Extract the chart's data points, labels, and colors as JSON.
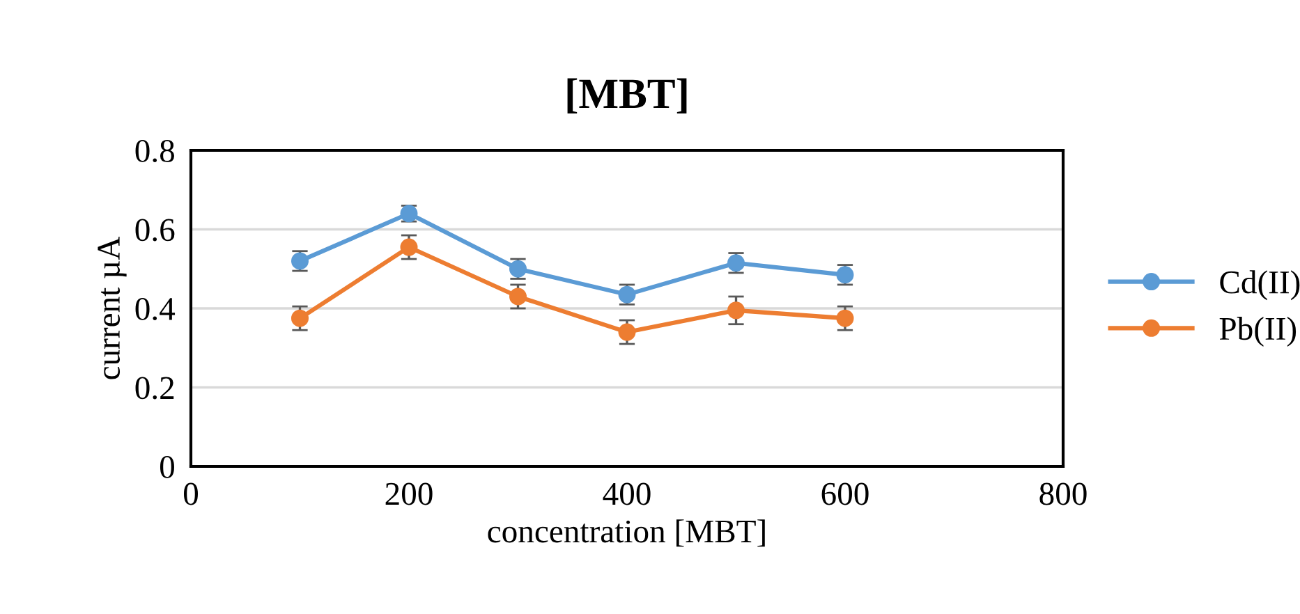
{
  "chart_data": {
    "type": "line",
    "title": "[MBT]",
    "xlabel": "concentration [MBT]",
    "ylabel": "current µA",
    "x": [
      100,
      200,
      300,
      400,
      500,
      600
    ],
    "xlim": [
      0,
      800
    ],
    "xticks": [
      0,
      200,
      400,
      600,
      800
    ],
    "ylim": [
      0,
      0.8
    ],
    "yticks": [
      0,
      0.2,
      0.4,
      0.6,
      0.8
    ],
    "grid": "y",
    "legend": "right",
    "marker": "circle",
    "line_style": "solid",
    "series": [
      {
        "name": "Cd(II)",
        "color": "#5b9bd5",
        "values": [
          0.52,
          0.64,
          0.5,
          0.435,
          0.515,
          0.485
        ],
        "errors": [
          0.025,
          0.02,
          0.025,
          0.025,
          0.025,
          0.025
        ]
      },
      {
        "name": "Pb(II)",
        "color": "#ed7d31",
        "values": [
          0.375,
          0.555,
          0.43,
          0.34,
          0.395,
          0.375
        ],
        "errors": [
          0.03,
          0.03,
          0.03,
          0.03,
          0.035,
          0.03
        ]
      }
    ]
  }
}
